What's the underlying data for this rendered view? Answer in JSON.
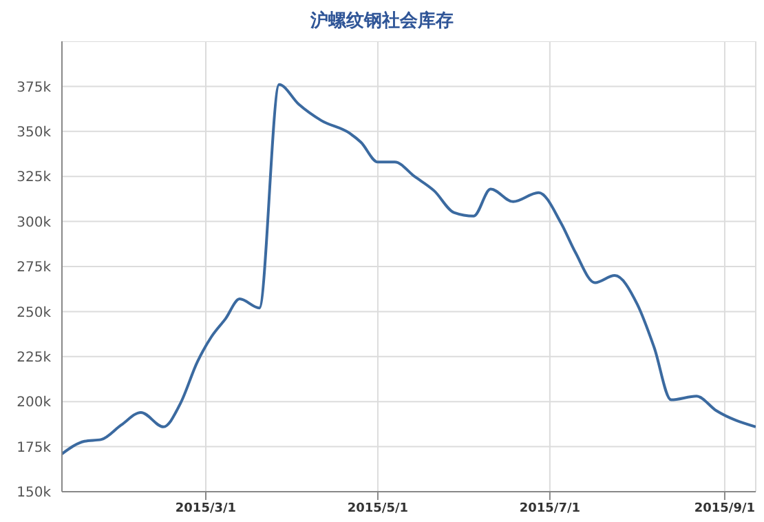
{
  "chart_data": {
    "type": "line",
    "title": "沪螺纹钢社会库存",
    "x": [
      "2015-01-09",
      "2015-01-17",
      "2015-01-23",
      "2015-01-30",
      "2015-02-06",
      "2015-02-14",
      "2015-02-20",
      "2015-02-26",
      "2015-03-03",
      "2015-03-08",
      "2015-03-13",
      "2015-03-20",
      "2015-03-27",
      "2015-04-03",
      "2015-04-11",
      "2015-04-21",
      "2015-04-25",
      "2015-05-01",
      "2015-05-07",
      "2015-05-14",
      "2015-05-21",
      "2015-05-28",
      "2015-06-04",
      "2015-06-10",
      "2015-06-18",
      "2015-06-27",
      "2015-07-05",
      "2015-07-10",
      "2015-07-17",
      "2015-07-24",
      "2015-08-01",
      "2015-08-07",
      "2015-08-13",
      "2015-08-22",
      "2015-08-29",
      "2015-09-12"
    ],
    "series": [
      {
        "color": "#3b6aa0",
        "values": [
          171000,
          178000,
          179000,
          187000,
          194000,
          186000,
          199000,
          222000,
          236000,
          246000,
          257000,
          252000,
          376000,
          365000,
          356000,
          349000,
          344000,
          333000,
          333000,
          325000,
          317000,
          305000,
          303000,
          318000,
          311000,
          316000,
          299000,
          283000,
          266000,
          270000,
          254000,
          230000,
          201000,
          203000,
          195000,
          186000
        ]
      }
    ],
    "xlim": [
      "2015-01-09",
      "2015-09-12"
    ],
    "xticks": [
      {
        "value": "2015-03-01",
        "label": "2015/3/1"
      },
      {
        "value": "2015-05-01",
        "label": "2015/5/1"
      },
      {
        "value": "2015-07-01",
        "label": "2015/7/1"
      },
      {
        "value": "2015-09-01",
        "label": "2015/9/1"
      }
    ],
    "ylim": [
      150000,
      400000
    ],
    "yticks": [
      {
        "value": 150000,
        "label": "150k"
      },
      {
        "value": 175000,
        "label": "175k"
      },
      {
        "value": 200000,
        "label": "200k"
      },
      {
        "value": 225000,
        "label": "225k"
      },
      {
        "value": 250000,
        "label": "250k"
      },
      {
        "value": 275000,
        "label": "275k"
      },
      {
        "value": 300000,
        "label": "300k"
      },
      {
        "value": 325000,
        "label": "325k"
      },
      {
        "value": 350000,
        "label": "350k"
      },
      {
        "value": 375000,
        "label": "375k"
      }
    ],
    "grid": true,
    "marker": "none",
    "line_style": "solid",
    "legend": false
  }
}
